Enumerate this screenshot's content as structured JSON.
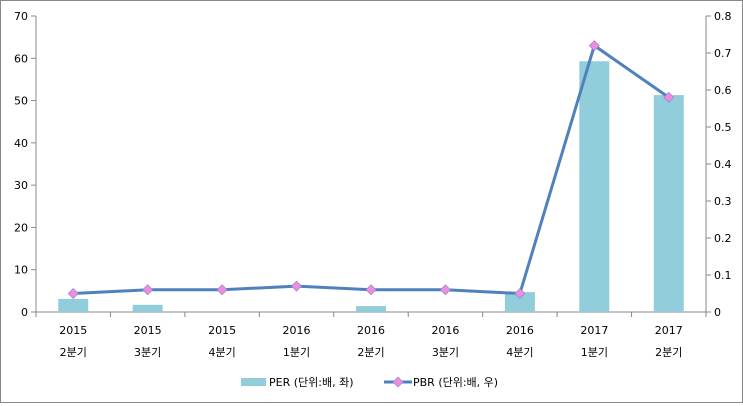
{
  "chart_data": {
    "type": "bar+line",
    "categories": [
      [
        "2015",
        "2분기"
      ],
      [
        "2015",
        "3분기"
      ],
      [
        "2015",
        "4분기"
      ],
      [
        "2016",
        "1분기"
      ],
      [
        "2016",
        "2분기"
      ],
      [
        "2016",
        "3분기"
      ],
      [
        "2016",
        "4분기"
      ],
      [
        "2017",
        "1분기"
      ],
      [
        "2017",
        "2분기"
      ]
    ],
    "series": [
      {
        "name": "PER (단위:배, 좌)",
        "type": "bar",
        "axis": "left",
        "color": "#92CDDC",
        "values": [
          3.1,
          1.7,
          0,
          0,
          1.4,
          0,
          4.7,
          59.3,
          51.3
        ]
      },
      {
        "name": "PBR (단위:배, 우)",
        "type": "line",
        "axis": "right",
        "color": "#4F81BD",
        "marker_color": "#F08BE0",
        "values": [
          0.05,
          0.06,
          0.06,
          0.07,
          0.06,
          0.06,
          0.05,
          0.72,
          0.58
        ]
      }
    ],
    "ylim_left": [
      0,
      70
    ],
    "yticks_left": [
      "0",
      "10",
      "20",
      "30",
      "40",
      "50",
      "60",
      "70"
    ],
    "ylim_right": [
      0,
      0.8
    ],
    "yticks_right": [
      "0",
      "0.1",
      "0.2",
      "0.3",
      "0.4",
      "0.5",
      "0.6",
      "0.7",
      "0.8"
    ],
    "grid": false,
    "legend": "bottom"
  }
}
